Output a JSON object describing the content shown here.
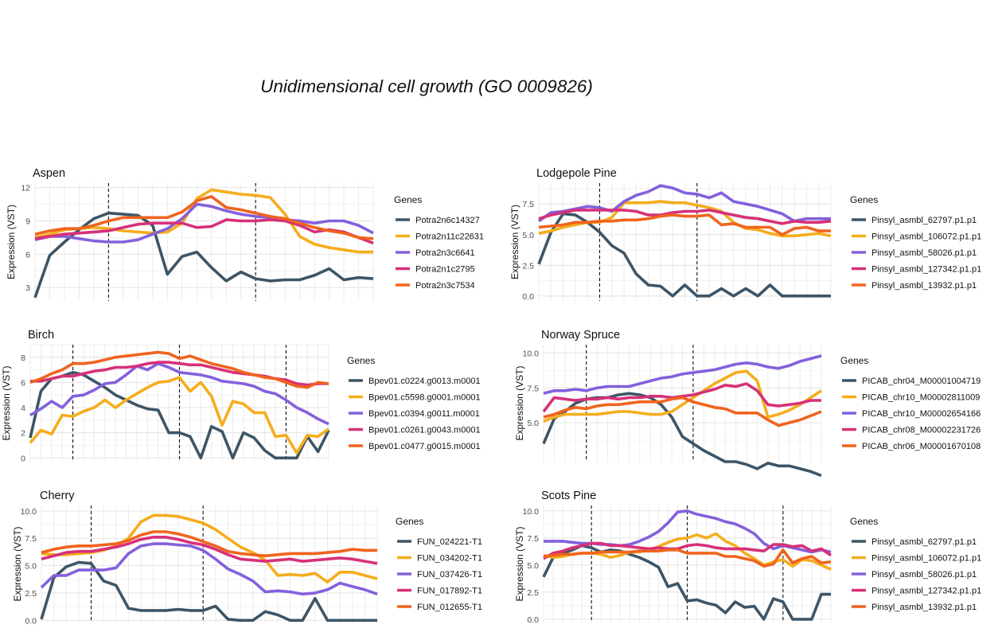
{
  "title": "Unidimensional cell growth (GO 0009826)",
  "legend_title": "Genes",
  "ylabel": "Expression (VST)",
  "colors": [
    "#3d5566",
    "#f5ad1c",
    "#8460dc",
    "#d63179",
    "#f0641e"
  ],
  "chart_data": [
    {
      "type": "line",
      "title": "Aspen",
      "ylabel": "Expression (VST)",
      "yticks": [
        3,
        6,
        9,
        12
      ],
      "ylim": [
        1.8,
        12.4
      ],
      "dashed_x": [
        5,
        15
      ],
      "grid": true,
      "legend": "right",
      "series": [
        {
          "name": "Potra2n6c14327",
          "values": [
            2.1,
            5.9,
            7.1,
            8.2,
            9.2,
            9.7,
            9.6,
            9.5,
            8.6,
            4.2,
            5.8,
            6.2,
            4.8,
            3.6,
            4.4,
            3.8,
            3.6,
            3.7,
            3.7,
            4.1,
            4.7,
            3.7,
            3.9,
            3.8
          ]
        },
        {
          "name": "Potra2n11c22631",
          "values": [
            7.5,
            7.8,
            8.2,
            8.3,
            8.4,
            8.3,
            8.1,
            8.0,
            7.9,
            8.0,
            8.8,
            11.0,
            11.8,
            11.6,
            11.4,
            11.3,
            11.1,
            9.6,
            7.6,
            6.9,
            6.6,
            6.4,
            6.2,
            6.2
          ]
        },
        {
          "name": "Potra2n3c6641",
          "values": [
            7.3,
            7.6,
            7.6,
            7.4,
            7.2,
            7.1,
            7.1,
            7.3,
            7.8,
            8.3,
            9.2,
            10.5,
            10.3,
            9.9,
            9.6,
            9.4,
            9.3,
            9.1,
            9.0,
            8.8,
            9.0,
            9.0,
            8.6,
            7.9
          ]
        },
        {
          "name": "Potra2n1c2795",
          "values": [
            7.4,
            7.6,
            7.8,
            7.9,
            8.0,
            8.1,
            8.4,
            8.7,
            8.8,
            8.8,
            8.8,
            8.4,
            8.5,
            9.1,
            9.0,
            9.0,
            9.1,
            9.0,
            8.6,
            8.0,
            8.2,
            8.0,
            7.5,
            7.0
          ]
        },
        {
          "name": "Potra2n3c7534",
          "values": [
            7.8,
            8.1,
            8.3,
            8.3,
            8.6,
            9.0,
            9.3,
            9.3,
            9.3,
            9.3,
            9.8,
            10.8,
            11.2,
            10.2,
            10.0,
            9.7,
            9.4,
            9.2,
            8.8,
            8.4,
            8.1,
            7.9,
            7.5,
            7.4
          ]
        }
      ]
    },
    {
      "type": "line",
      "title": "Lodgepole Pine",
      "ylabel": "Expression (VST)",
      "yticks": [
        0.0,
        2.5,
        5.0,
        7.5
      ],
      "ylim": [
        -0.4,
        9.2
      ],
      "dashed_x": [
        5,
        13
      ],
      "grid": true,
      "legend": "right",
      "series": [
        {
          "name": "Pinsyl_asmbl_62797.p1.p1",
          "values": [
            2.6,
            5.2,
            6.7,
            6.6,
            6.0,
            5.2,
            4.1,
            3.5,
            1.8,
            0.9,
            0.8,
            0.0,
            0.9,
            0.0,
            0.0,
            0.6,
            0.0,
            0.6,
            0.0,
            0.9,
            0.0,
            0.0,
            0.0,
            0.0,
            0.0
          ]
        },
        {
          "name": "Pinsyl_asmbl_106072.p1.p1",
          "values": [
            5.1,
            5.3,
            5.6,
            5.8,
            6.0,
            6.0,
            6.4,
            7.6,
            7.6,
            7.6,
            7.7,
            7.6,
            7.6,
            7.4,
            7.2,
            6.9,
            6.0,
            5.5,
            5.4,
            5.1,
            4.9,
            4.9,
            5.0,
            5.1,
            4.9
          ]
        },
        {
          "name": "Pinsyl_asmbl_58026.p1.p1",
          "values": [
            6.1,
            6.8,
            6.9,
            7.1,
            7.3,
            7.2,
            6.9,
            7.7,
            8.2,
            8.5,
            9.0,
            8.8,
            8.4,
            8.3,
            8.0,
            8.4,
            7.7,
            7.5,
            7.3,
            7.0,
            6.7,
            6.1,
            6.3,
            6.3,
            6.3
          ]
        },
        {
          "name": "Pinsyl_asmbl_127342.p1.p1",
          "values": [
            6.3,
            6.6,
            6.8,
            7.0,
            7.0,
            7.0,
            7.0,
            7.0,
            6.9,
            6.6,
            6.6,
            6.8,
            6.9,
            6.9,
            7.0,
            6.8,
            6.6,
            6.4,
            6.3,
            6.1,
            5.9,
            6.1,
            6.0,
            6.0,
            6.1
          ]
        },
        {
          "name": "Pinsyl_asmbl_13932.p1.p1",
          "values": [
            5.6,
            5.7,
            5.8,
            6.0,
            6.0,
            6.1,
            6.1,
            6.2,
            6.2,
            6.3,
            6.5,
            6.6,
            6.5,
            6.5,
            6.6,
            5.8,
            5.9,
            5.6,
            5.6,
            5.6,
            5.0,
            5.5,
            5.6,
            5.3,
            5.3
          ]
        }
      ]
    },
    {
      "type": "line",
      "title": "Birch",
      "ylabel": "Expression (VST)",
      "yticks": [
        0,
        2,
        4,
        6,
        8
      ],
      "ylim": [
        -0.3,
        9.0
      ],
      "dashed_x": [
        4,
        14,
        24
      ],
      "grid": true,
      "legend": "right",
      "series": [
        {
          "name": "Bpev01.c0224.g0013.m0001",
          "values": [
            1.6,
            5.3,
            6.3,
            6.5,
            6.8,
            6.6,
            6.1,
            5.6,
            5.0,
            4.6,
            4.2,
            3.9,
            3.8,
            2.0,
            2.0,
            1.7,
            0.0,
            2.5,
            2.1,
            0.0,
            2.0,
            1.6,
            0.6,
            0.0,
            0.0,
            0.0,
            1.7,
            0.5,
            2.2
          ]
        },
        {
          "name": "Bpev01.c5598.g0001.m0001",
          "values": [
            1.2,
            2.2,
            1.9,
            3.4,
            3.3,
            3.7,
            4.0,
            4.6,
            4.0,
            4.6,
            5.1,
            5.6,
            6.0,
            6.1,
            6.4,
            5.3,
            6.0,
            4.9,
            2.6,
            4.5,
            4.3,
            3.6,
            3.6,
            1.7,
            1.8,
            0.4,
            1.8,
            1.7,
            2.3
          ]
        },
        {
          "name": "Bpev01.c0394.g0011.m0001",
          "values": [
            3.4,
            3.9,
            4.5,
            4.0,
            4.9,
            5.0,
            5.4,
            5.9,
            6.0,
            6.6,
            7.3,
            7.0,
            7.5,
            7.2,
            6.8,
            6.7,
            6.6,
            6.4,
            6.1,
            6.0,
            5.9,
            5.7,
            5.3,
            5.1,
            4.6,
            4.0,
            3.6,
            3.1,
            2.7
          ]
        },
        {
          "name": "Bpev01.c0261.g0043.m0001",
          "values": [
            6.1,
            6.1,
            6.3,
            6.5,
            6.5,
            6.7,
            6.9,
            7.0,
            7.2,
            7.2,
            7.3,
            7.5,
            7.6,
            7.6,
            7.5,
            7.4,
            7.4,
            7.2,
            7.0,
            6.8,
            6.7,
            6.6,
            6.5,
            6.3,
            6.2,
            5.9,
            5.8,
            5.9,
            5.9
          ]
        },
        {
          "name": "Bpev01.c0477.g0015.m0001",
          "values": [
            6.0,
            6.3,
            6.7,
            7.0,
            7.5,
            7.5,
            7.6,
            7.8,
            8.0,
            8.1,
            8.2,
            8.3,
            8.4,
            8.3,
            7.9,
            8.1,
            7.8,
            7.5,
            7.3,
            7.1,
            6.8,
            6.6,
            6.4,
            6.3,
            6.0,
            5.7,
            5.6,
            6.0,
            5.9
          ]
        }
      ]
    },
    {
      "type": "line",
      "title": "Norway Spruce",
      "ylabel": "Expression (VST)",
      "yticks": [
        5.0,
        7.5,
        10.0
      ],
      "ylim": [
        2.2,
        10.6
      ],
      "dashed_x": [
        4,
        14
      ],
      "grid": true,
      "legend": "right",
      "series": [
        {
          "name": "PICAB_chr04_M00001004719",
          "values": [
            3.5,
            5.3,
            5.8,
            6.4,
            6.7,
            6.8,
            6.8,
            7.0,
            7.1,
            7.0,
            6.8,
            6.3,
            5.4,
            4.0,
            3.5,
            3.0,
            2.6,
            2.2,
            2.2,
            2.0,
            1.7,
            2.1,
            1.9,
            1.9,
            1.7,
            1.5,
            1.2
          ]
        },
        {
          "name": "PICAB_chr10_M00002811009",
          "values": [
            5.1,
            5.4,
            5.6,
            5.6,
            5.6,
            5.6,
            5.7,
            5.8,
            5.8,
            5.7,
            5.6,
            5.6,
            5.8,
            6.3,
            6.8,
            7.3,
            7.8,
            8.2,
            8.6,
            8.7,
            8.0,
            5.4,
            5.6,
            5.9,
            6.3,
            6.8,
            7.3
          ]
        },
        {
          "name": "PICAB_chr10_M00002654166",
          "values": [
            7.1,
            7.3,
            7.3,
            7.4,
            7.3,
            7.5,
            7.6,
            7.6,
            7.6,
            7.8,
            8.0,
            8.2,
            8.3,
            8.5,
            8.6,
            8.7,
            8.8,
            9.0,
            9.2,
            9.3,
            9.2,
            9.0,
            8.9,
            9.1,
            9.4,
            9.6,
            9.8
          ]
        },
        {
          "name": "PICAB_chr08_M00002231726",
          "values": [
            5.8,
            6.8,
            6.7,
            6.6,
            6.7,
            6.7,
            6.8,
            6.7,
            6.8,
            6.8,
            6.9,
            6.9,
            6.8,
            6.9,
            7.0,
            7.2,
            7.4,
            7.7,
            7.6,
            7.8,
            7.3,
            6.3,
            6.2,
            6.3,
            6.4,
            6.6,
            6.6
          ]
        },
        {
          "name": "PICAB_chr06_M00001670108",
          "values": [
            5.4,
            5.6,
            5.9,
            6.1,
            6.0,
            6.2,
            6.3,
            6.3,
            6.4,
            6.5,
            6.5,
            6.5,
            6.7,
            6.8,
            6.5,
            6.3,
            6.1,
            6.0,
            5.7,
            5.7,
            5.7,
            5.2,
            4.8,
            5.0,
            5.2,
            5.5,
            5.8
          ]
        }
      ]
    },
    {
      "type": "line",
      "title": "Cherry",
      "ylabel": "Expression (VST)",
      "yticks": [
        0.0,
        2.5,
        5.0,
        7.5,
        10.0
      ],
      "ylim": [
        -0.2,
        10.5
      ],
      "dashed_x": [
        4,
        13
      ],
      "grid": true,
      "legend": "right",
      "series": [
        {
          "name": "FUN_024221-T1",
          "values": [
            0.1,
            3.9,
            4.9,
            5.3,
            5.2,
            3.6,
            3.2,
            1.1,
            0.9,
            0.9,
            0.9,
            1.0,
            0.9,
            0.9,
            1.3,
            0.1,
            0.0,
            0.0,
            0.8,
            0.5,
            0.0,
            0.0,
            2.0,
            0.0,
            0.0,
            0.0,
            0.0,
            0.0
          ]
        },
        {
          "name": "FUN_034202-T1",
          "values": [
            6.1,
            6.0,
            6.0,
            6.1,
            6.2,
            6.4,
            6.8,
            7.5,
            9.0,
            9.6,
            9.6,
            9.5,
            9.2,
            8.9,
            8.3,
            7.5,
            6.7,
            6.2,
            5.5,
            4.1,
            4.2,
            4.1,
            4.3,
            3.5,
            4.4,
            4.4,
            4.1,
            3.8
          ]
        },
        {
          "name": "FUN_037426-T1",
          "values": [
            3.0,
            4.1,
            4.1,
            4.6,
            4.6,
            4.6,
            4.8,
            6.1,
            6.8,
            7.0,
            7.0,
            6.9,
            6.8,
            6.4,
            5.6,
            4.7,
            4.2,
            3.6,
            2.6,
            2.7,
            2.6,
            2.4,
            2.5,
            2.8,
            3.4,
            3.1,
            2.8,
            2.4
          ]
        },
        {
          "name": "FUN_017892-T1",
          "values": [
            5.6,
            5.9,
            6.2,
            6.3,
            6.3,
            6.5,
            6.7,
            7.0,
            7.4,
            7.6,
            7.6,
            7.4,
            7.1,
            6.9,
            6.5,
            6.0,
            5.6,
            5.5,
            5.4,
            5.5,
            5.6,
            5.4,
            5.5,
            5.6,
            5.7,
            5.6,
            5.4,
            5.2
          ]
        },
        {
          "name": "FUN_012655-T1",
          "values": [
            6.2,
            6.5,
            6.7,
            6.8,
            6.8,
            6.9,
            7.0,
            7.3,
            7.8,
            8.1,
            8.1,
            7.9,
            7.6,
            7.2,
            6.8,
            6.3,
            6.1,
            6.0,
            5.9,
            6.0,
            6.1,
            6.1,
            6.1,
            6.2,
            6.3,
            6.5,
            6.4,
            6.4
          ]
        }
      ]
    },
    {
      "type": "line",
      "title": "Scots Pine",
      "ylabel": "Expression (VST)",
      "yticks": [
        0.0,
        2.5,
        5.0,
        7.5,
        10.0
      ],
      "ylim": [
        -0.3,
        10.5
      ],
      "dashed_x": [
        5,
        15,
        25
      ],
      "grid": true,
      "legend": "right",
      "series": [
        {
          "name": "Pinsyl_asmbl_62797.p1.p1",
          "values": [
            3.9,
            5.7,
            6.1,
            6.4,
            6.8,
            6.6,
            6.2,
            6.4,
            6.3,
            6.0,
            5.7,
            5.3,
            4.8,
            3.0,
            3.3,
            1.7,
            1.8,
            1.5,
            1.3,
            0.6,
            1.6,
            1.1,
            1.2,
            0.0,
            1.9,
            1.6,
            0.0,
            0.0,
            0.0,
            2.3,
            2.3
          ]
        },
        {
          "name": "Pinsyl_asmbl_106072.p1.p1",
          "values": [
            5.9,
            5.7,
            5.8,
            6.0,
            6.1,
            6.1,
            6.0,
            5.7,
            5.9,
            6.2,
            6.2,
            6.4,
            6.7,
            7.1,
            7.4,
            7.5,
            7.8,
            7.5,
            7.9,
            7.2,
            6.8,
            6.1,
            5.6,
            5.0,
            5.3,
            5.5,
            4.9,
            5.5,
            5.4,
            5.0,
            4.6
          ]
        },
        {
          "name": "Pinsyl_asmbl_58026.p1.p1",
          "values": [
            7.2,
            7.2,
            7.2,
            7.1,
            7.0,
            7.0,
            6.9,
            6.9,
            6.8,
            6.9,
            7.2,
            7.6,
            8.1,
            8.9,
            9.9,
            10.0,
            9.7,
            9.5,
            9.3,
            9.0,
            8.8,
            8.4,
            7.9,
            7.0,
            6.5,
            6.8,
            6.6,
            6.4,
            6.2,
            6.4,
            6.2
          ]
        },
        {
          "name": "Pinsyl_asmbl_127342.p1.p1",
          "values": [
            5.6,
            6.1,
            6.3,
            6.6,
            6.8,
            7.0,
            7.0,
            6.8,
            6.8,
            6.7,
            6.6,
            6.5,
            6.6,
            6.5,
            6.5,
            6.8,
            6.9,
            6.8,
            6.6,
            6.5,
            6.5,
            6.5,
            6.4,
            6.3,
            6.9,
            6.9,
            6.7,
            6.8,
            6.3,
            6.5,
            5.9
          ]
        },
        {
          "name": "Pinsyl_asmbl_13932.p1.p1",
          "values": [
            5.8,
            5.9,
            6.0,
            6.0,
            6.1,
            6.1,
            6.2,
            6.2,
            6.2,
            6.2,
            6.3,
            6.3,
            6.3,
            6.4,
            6.4,
            6.1,
            6.1,
            6.1,
            6.1,
            5.8,
            5.8,
            5.6,
            5.4,
            4.9,
            5.1,
            6.4,
            5.2,
            5.6,
            5.8,
            5.2,
            5.3
          ]
        }
      ]
    }
  ]
}
